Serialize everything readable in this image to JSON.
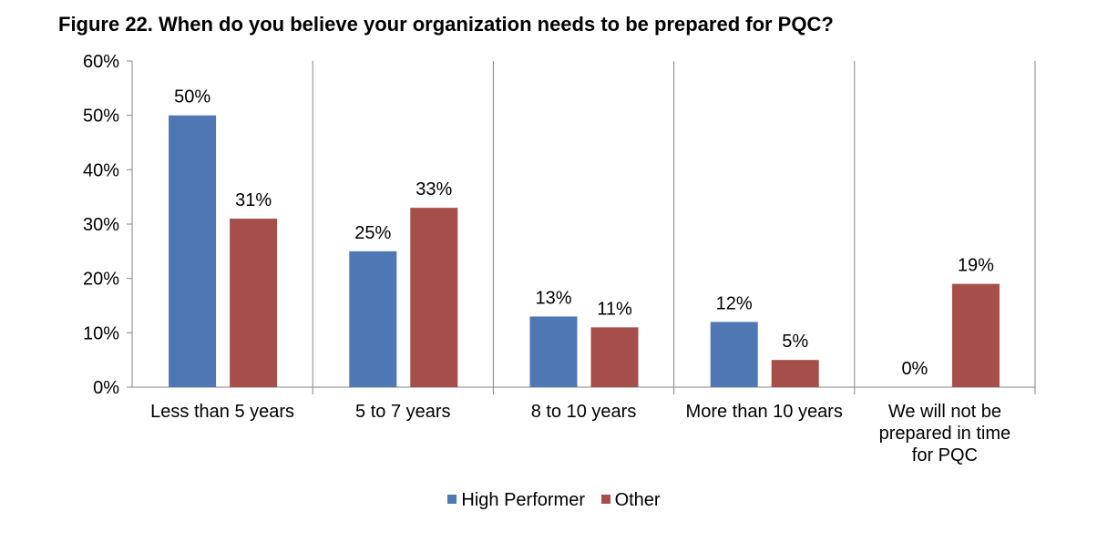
{
  "chart_data": {
    "type": "bar",
    "title": "Figure 22. When do you believe your organization needs to be prepared for PQC?",
    "categories": [
      "Less than 5 years",
      "5 to 7 years",
      "8 to 10 years",
      "More than 10 years",
      "We will not be prepared in time for PQC"
    ],
    "category_lines": [
      [
        "Less than 5 years"
      ],
      [
        "5 to 7 years"
      ],
      [
        "8 to 10 years"
      ],
      [
        "More than 10 years"
      ],
      [
        "We will not be",
        "prepared in time",
        "for PQC"
      ]
    ],
    "series": [
      {
        "name": "High Performer",
        "color": "#4f77b4",
        "values": [
          50,
          25,
          13,
          12,
          0
        ]
      },
      {
        "name": "Other",
        "color": "#a64f4a",
        "values": [
          31,
          33,
          11,
          5,
          19
        ]
      }
    ],
    "ylim": [
      0,
      60
    ],
    "yticks": [
      0,
      10,
      20,
      30,
      40,
      50,
      60
    ],
    "ytick_labels": [
      "0%",
      "10%",
      "20%",
      "30%",
      "40%",
      "50%",
      "60%"
    ],
    "data_labels": [
      [
        "50%",
        "25%",
        "13%",
        "12%",
        "0%"
      ],
      [
        "31%",
        "33%",
        "11%",
        "5%",
        "19%"
      ]
    ],
    "xlabel": "",
    "ylabel": "",
    "legend_position": "bottom-center",
    "grid": false
  }
}
